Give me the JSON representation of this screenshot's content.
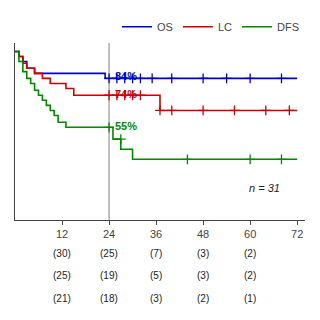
{
  "chart_data": {
    "type": "line",
    "series": [
      {
        "name": "OS",
        "color": "#0000CC",
        "line_style": "step",
        "marker": "cross",
        "x": [
          0,
          1,
          2,
          3,
          5,
          7,
          9,
          11,
          13,
          15,
          17,
          19,
          21,
          23,
          24,
          72
        ],
        "values": [
          1.0,
          0.97,
          0.94,
          0.9,
          0.87,
          0.87,
          0.87,
          0.87,
          0.87,
          0.87,
          0.87,
          0.87,
          0.87,
          0.84,
          0.84,
          0.84
        ],
        "censor_x": [
          24,
          26,
          28,
          30,
          32,
          35,
          40,
          48,
          54,
          60,
          68
        ],
        "censor_values": [
          0.84,
          0.84,
          0.84,
          0.84,
          0.84,
          0.84,
          0.84,
          0.84,
          0.84,
          0.84,
          0.84
        ]
      },
      {
        "name": "LC",
        "color": "#CC0000",
        "line_style": "step",
        "marker": "cross",
        "x": [
          0,
          1,
          2,
          3,
          5,
          7,
          9,
          11,
          13,
          15,
          17,
          19,
          21,
          23,
          24,
          36,
          37,
          72
        ],
        "values": [
          1.0,
          0.97,
          0.93,
          0.9,
          0.87,
          0.84,
          0.81,
          0.81,
          0.78,
          0.74,
          0.74,
          0.74,
          0.74,
          0.74,
          0.74,
          0.74,
          0.65,
          0.65
        ],
        "censor_x": [
          24,
          26,
          28,
          30,
          32,
          37,
          40,
          48,
          56,
          64,
          70
        ],
        "censor_values": [
          0.74,
          0.74,
          0.74,
          0.74,
          0.74,
          0.65,
          0.65,
          0.65,
          0.65,
          0.65,
          0.65
        ]
      },
      {
        "name": "DFS",
        "color": "#008800",
        "line_style": "step",
        "marker": "cross",
        "x": [
          0,
          1,
          2,
          3,
          4,
          5,
          6,
          7,
          8,
          9,
          10,
          11,
          13,
          14,
          24,
          25,
          27,
          30,
          32,
          72
        ],
        "values": [
          1.0,
          0.94,
          0.88,
          0.84,
          0.81,
          0.77,
          0.74,
          0.71,
          0.68,
          0.65,
          0.62,
          0.58,
          0.55,
          0.55,
          0.55,
          0.48,
          0.42,
          0.36,
          0.36,
          0.36
        ],
        "censor_x": [
          24,
          27,
          44,
          60,
          68
        ],
        "censor_values": [
          0.55,
          0.48,
          0.36,
          0.36,
          0.36
        ]
      }
    ],
    "annotations": [
      {
        "text": "84%",
        "x": 25,
        "y": 0.855,
        "color": "#0000CC"
      },
      {
        "text": "74%",
        "x": 25,
        "y": 0.745,
        "color": "#CC0000"
      },
      {
        "text": "55%",
        "x": 25,
        "y": 0.56,
        "color": "#008800"
      }
    ],
    "n_text": "n = 31",
    "vline_x": 24,
    "xlim": [
      0,
      74
    ],
    "ylim": [
      0.0,
      1.05
    ],
    "xticks": [
      12,
      24,
      36,
      48,
      60,
      72
    ],
    "tick_labels": "x",
    "grid": false,
    "legend": "top",
    "risk_table": {
      "x": [
        12,
        24,
        36,
        48,
        60
      ],
      "rows": [
        [
          "(30)",
          "(25)",
          "(7)",
          "(3)",
          "(2)"
        ],
        [
          "(25)",
          "(19)",
          "(5)",
          "(3)",
          "(2)"
        ],
        [
          "(21)",
          "(18)",
          "(3)",
          "(2)",
          "(1)"
        ]
      ]
    }
  }
}
